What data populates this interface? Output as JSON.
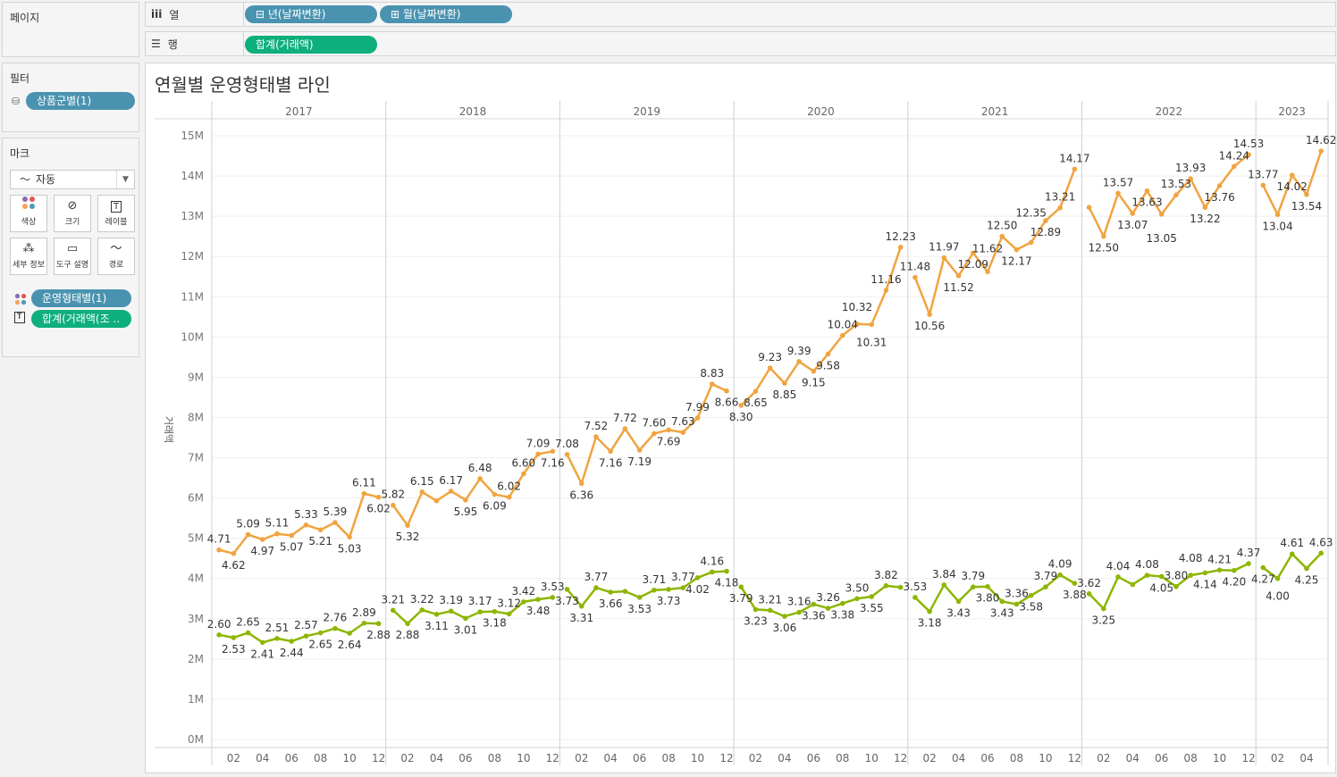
{
  "shelves": {
    "pages_label": "페이지",
    "columns": {
      "label": "열",
      "icon": "columns-icon",
      "pills": [
        {
          "label": "⊟ 년(날짜변환)"
        },
        {
          "label": "⊞ 월(날짜변환)"
        }
      ]
    },
    "rows": {
      "label": "행",
      "icon": "rows-icon",
      "pills": [
        {
          "label": "합계(거래액)"
        }
      ]
    }
  },
  "filters": {
    "label": "필터",
    "pills": [
      {
        "label": "상품군별(1)"
      }
    ]
  },
  "marks": {
    "label": "마크",
    "type_select": "자동",
    "buttons": [
      {
        "label": "색상",
        "icon": "color-icon"
      },
      {
        "label": "크기",
        "icon": "size-icon"
      },
      {
        "label": "레이블",
        "icon": "label-icon"
      },
      {
        "label": "세부 정보",
        "icon": "detail-icon"
      },
      {
        "label": "도구 설명",
        "icon": "tooltip-icon"
      },
      {
        "label": "경로",
        "icon": "path-icon"
      }
    ],
    "fields": [
      {
        "label": "운영형태별(1)",
        "icon": "color-icon"
      },
      {
        "label": "합계(거래액(조 ..",
        "icon": "label-icon"
      }
    ]
  },
  "colors": {
    "series_a": "#f0a440",
    "series_b": "#8db600",
    "pill_blue": "#4a93b0",
    "pill_green": "#0eaf7c"
  },
  "chart_data": {
    "type": "line",
    "title": "연월별 운영형태별 라인",
    "ylabel": "거래액",
    "xlabel": "",
    "ylim": [
      0,
      15.3
    ],
    "y_ticks": [
      "0M",
      "1M",
      "2M",
      "3M",
      "4M",
      "5M",
      "6M",
      "7M",
      "8M",
      "9M",
      "10M",
      "11M",
      "12M",
      "13M",
      "14M",
      "15M"
    ],
    "grid": true,
    "legend": "none",
    "years": [
      "2017",
      "2018",
      "2019",
      "2020",
      "2021",
      "2022",
      "2023"
    ],
    "month_ticks": [
      "02",
      "04",
      "06",
      "08",
      "10",
      "12"
    ],
    "series": [
      {
        "name": "series_a",
        "color": "#f0a440",
        "values": {
          "2017": [
            4.71,
            4.62,
            5.09,
            4.97,
            5.11,
            5.07,
            5.33,
            5.21,
            5.39,
            5.03,
            6.11,
            6.02
          ],
          "2018": [
            5.82,
            5.32,
            6.15,
            5.93,
            6.17,
            5.95,
            6.48,
            6.09,
            6.02,
            6.6,
            7.09,
            7.16
          ],
          "2019": [
            7.08,
            6.36,
            7.52,
            7.16,
            7.72,
            7.19,
            7.6,
            7.69,
            7.63,
            7.99,
            8.83,
            8.66
          ],
          "2020": [
            8.3,
            8.65,
            9.23,
            8.85,
            9.39,
            9.15,
            9.58,
            10.04,
            10.32,
            10.31,
            11.16,
            12.23
          ],
          "2021": [
            11.48,
            10.56,
            11.97,
            11.52,
            12.09,
            11.62,
            12.5,
            12.17,
            12.35,
            12.89,
            13.21,
            14.17
          ],
          "2022": [
            13.22,
            12.5,
            13.57,
            13.07,
            13.63,
            13.05,
            13.53,
            13.93,
            13.22,
            13.76,
            14.24,
            14.53
          ],
          "2023": [
            13.77,
            13.04,
            14.02,
            13.54,
            14.62
          ]
        },
        "hidden_labels": {
          "2018": [
            3
          ],
          "2022": [
            0
          ]
        }
      },
      {
        "name": "series_b",
        "color": "#8db600",
        "values": {
          "2017": [
            2.6,
            2.53,
            2.65,
            2.41,
            2.51,
            2.44,
            2.57,
            2.65,
            2.76,
            2.64,
            2.89,
            2.88
          ],
          "2018": [
            3.21,
            2.88,
            3.22,
            3.11,
            3.19,
            3.01,
            3.17,
            3.18,
            3.12,
            3.42,
            3.48,
            3.53
          ],
          "2019": [
            3.73,
            3.31,
            3.77,
            3.66,
            3.68,
            3.53,
            3.71,
            3.73,
            3.77,
            4.02,
            4.16,
            4.18
          ],
          "2020": [
            3.79,
            3.23,
            3.21,
            3.06,
            3.16,
            3.36,
            3.26,
            3.38,
            3.5,
            3.55,
            3.82,
            3.78
          ],
          "2021": [
            3.53,
            3.18,
            3.84,
            3.43,
            3.79,
            3.8,
            3.43,
            3.36,
            3.58,
            3.79,
            4.09,
            3.88
          ],
          "2022": [
            3.62,
            3.25,
            4.04,
            3.85,
            4.08,
            4.05,
            3.8,
            4.08,
            4.14,
            4.21,
            4.2,
            4.37
          ],
          "2023": [
            4.27,
            4.0,
            4.61,
            4.25,
            4.63
          ]
        },
        "hidden_labels": {
          "2019": [
            4
          ],
          "2020": [
            11
          ],
          "2022": [
            3
          ]
        }
      }
    ]
  }
}
